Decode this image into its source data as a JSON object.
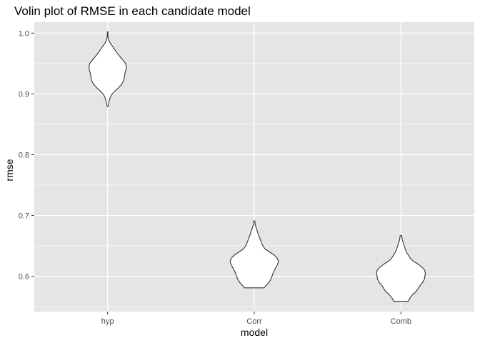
{
  "chart_data": {
    "type": "violin",
    "title": "Volin plot of RMSE in each candidate model",
    "xlabel": "model",
    "ylabel": "rmse",
    "categories": [
      "hyp",
      "Corr",
      "Comb"
    ],
    "ylim": [
      0.542,
      1.018
    ],
    "yticks": [
      0.6,
      0.7,
      0.8,
      0.9,
      1.0
    ],
    "ytick_labels": [
      "0.6",
      "0.7",
      "0.8",
      "0.9",
      "1.0"
    ],
    "grid": true,
    "legend": "none",
    "colors": {
      "panel": "#e5e5e5",
      "grid": "#ffffff",
      "violin_fill": "#ffffff",
      "violin_stroke": "#333333"
    },
    "violins": [
      {
        "name": "hyp",
        "min": 0.879,
        "max": 1.002,
        "density": [
          [
            0.879,
            0.003
          ],
          [
            0.88,
            0.008
          ],
          [
            0.885,
            0.016
          ],
          [
            0.89,
            0.028
          ],
          [
            0.895,
            0.042
          ],
          [
            0.9,
            0.07
          ],
          [
            0.905,
            0.112
          ],
          [
            0.91,
            0.165
          ],
          [
            0.915,
            0.205
          ],
          [
            0.92,
            0.235
          ],
          [
            0.925,
            0.25
          ],
          [
            0.93,
            0.256
          ],
          [
            0.935,
            0.265
          ],
          [
            0.94,
            0.278
          ],
          [
            0.945,
            0.284
          ],
          [
            0.95,
            0.272
          ],
          [
            0.955,
            0.237
          ],
          [
            0.96,
            0.197
          ],
          [
            0.965,
            0.16
          ],
          [
            0.97,
            0.126
          ],
          [
            0.975,
            0.096
          ],
          [
            0.98,
            0.062
          ],
          [
            0.985,
            0.032
          ],
          [
            0.99,
            0.012
          ],
          [
            0.995,
            0.004
          ],
          [
            1.002,
            0.004
          ]
        ]
      },
      {
        "name": "Corr",
        "min": 0.581,
        "max": 0.691,
        "density": [
          [
            0.581,
            0.145
          ],
          [
            0.585,
            0.18
          ],
          [
            0.59,
            0.222
          ],
          [
            0.595,
            0.25
          ],
          [
            0.6,
            0.268
          ],
          [
            0.605,
            0.284
          ],
          [
            0.61,
            0.305
          ],
          [
            0.615,
            0.33
          ],
          [
            0.62,
            0.355
          ],
          [
            0.625,
            0.366
          ],
          [
            0.63,
            0.345
          ],
          [
            0.635,
            0.3
          ],
          [
            0.64,
            0.232
          ],
          [
            0.645,
            0.162
          ],
          [
            0.65,
            0.13
          ],
          [
            0.655,
            0.11
          ],
          [
            0.66,
            0.092
          ],
          [
            0.665,
            0.075
          ],
          [
            0.67,
            0.058
          ],
          [
            0.675,
            0.042
          ],
          [
            0.68,
            0.028
          ],
          [
            0.685,
            0.013
          ],
          [
            0.691,
            0.01
          ]
        ]
      },
      {
        "name": "Comb",
        "min": 0.559,
        "max": 0.667,
        "density": [
          [
            0.559,
            0.11
          ],
          [
            0.565,
            0.14
          ],
          [
            0.57,
            0.178
          ],
          [
            0.575,
            0.23
          ],
          [
            0.58,
            0.262
          ],
          [
            0.585,
            0.29
          ],
          [
            0.59,
            0.33
          ],
          [
            0.595,
            0.354
          ],
          [
            0.6,
            0.362
          ],
          [
            0.605,
            0.37
          ],
          [
            0.61,
            0.36
          ],
          [
            0.615,
            0.318
          ],
          [
            0.62,
            0.26
          ],
          [
            0.625,
            0.186
          ],
          [
            0.63,
            0.14
          ],
          [
            0.635,
            0.112
          ],
          [
            0.64,
            0.082
          ],
          [
            0.645,
            0.065
          ],
          [
            0.65,
            0.05
          ],
          [
            0.655,
            0.035
          ],
          [
            0.66,
            0.02
          ],
          [
            0.667,
            0.012
          ]
        ]
      }
    ]
  }
}
